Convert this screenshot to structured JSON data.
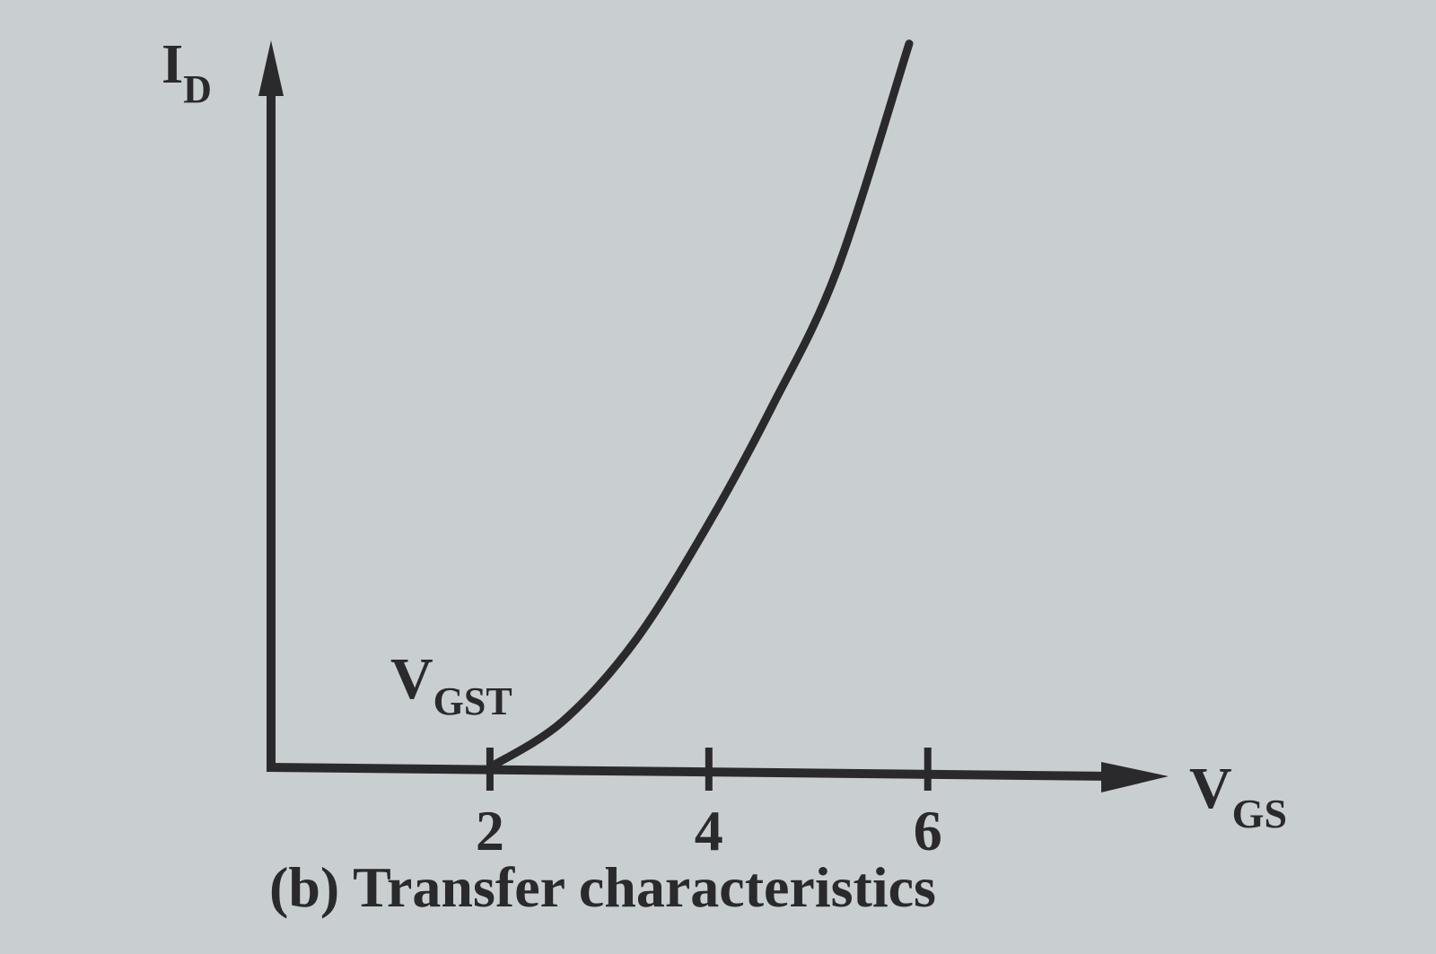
{
  "chart_data": {
    "type": "line",
    "caption": "(b) Transfer characteristics",
    "x_label": "V",
    "x_label_sub": "GS",
    "y_label": "I",
    "y_label_sub": "D",
    "annotation": "V",
    "annotation_sub": "GST",
    "x": [
      2,
      2.66,
      3.33,
      4,
      4.58,
      5.17,
      5.83
    ],
    "series": [
      {
        "name": null,
        "color": "#2a2a2c",
        "values": [
          0,
          0.42,
          1.17,
          2.25,
          3.33,
          4.58,
          6.67
        ]
      }
    ],
    "xlim": [
      0,
      8.2
    ],
    "ylim": [
      0,
      6.7
    ],
    "xticks": [
      2,
      4,
      6
    ],
    "grid": false
  }
}
